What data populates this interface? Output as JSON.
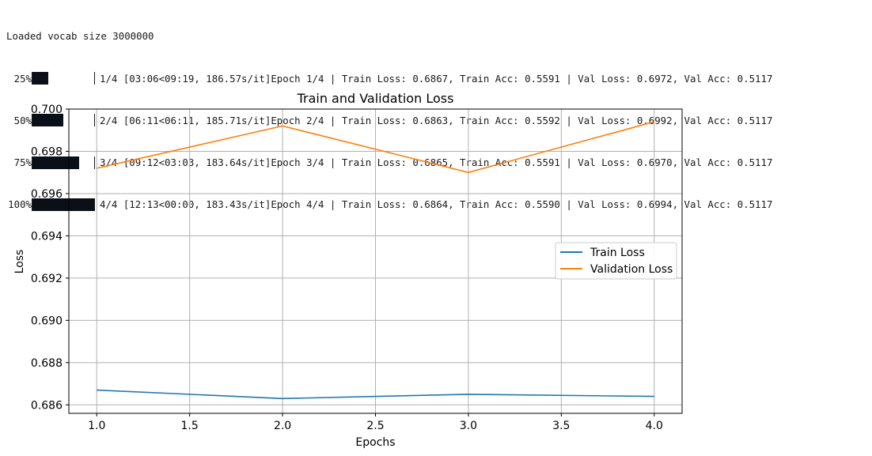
{
  "console": {
    "header": "Loaded vocab size 3000000",
    "progress": [
      {
        "percent_label": "25%",
        "fraction": 0.25,
        "text": "1/4 [03:06<09:19, 186.57s/it]Epoch 1/4 | Train Loss: 0.6867, Train Acc: 0.5591 | Val Loss: 0.6972, Val Acc: 0.5117"
      },
      {
        "percent_label": "50%",
        "fraction": 0.5,
        "text": "2/4 [06:11<06:11, 185.71s/it]Epoch 2/4 | Train Loss: 0.6863, Train Acc: 0.5592 | Val Loss: 0.6992, Val Acc: 0.5117"
      },
      {
        "percent_label": "75%",
        "fraction": 0.75,
        "text": "3/4 [09:12<03:03, 183.64s/it]Epoch 3/4 | Train Loss: 0.6865, Train Acc: 0.5591 | Val Loss: 0.6970, Val Acc: 0.5117"
      },
      {
        "percent_label": "100%",
        "fraction": 1.0,
        "text": "4/4 [12:13<00:00, 183.43s/it]Epoch 4/4 | Train Loss: 0.6864, Train Acc: 0.5590 | Val Loss: 0.6994, Val Acc: 0.5117"
      }
    ]
  },
  "chart_data": {
    "type": "line",
    "title": "Train and Validation Loss",
    "xlabel": "Epochs",
    "ylabel": "Loss",
    "x": [
      1,
      2,
      3,
      4
    ],
    "xlim": [
      0.85,
      4.15
    ],
    "ylim": [
      0.6856,
      0.7
    ],
    "xticks": [
      "1.0",
      "1.5",
      "2.0",
      "2.5",
      "3.0",
      "3.5",
      "4.0"
    ],
    "yticks": [
      "0.686",
      "0.688",
      "0.690",
      "0.692",
      "0.694",
      "0.696",
      "0.698",
      "0.700"
    ],
    "grid": true,
    "legend_position": "center-right",
    "series": [
      {
        "name": "Train Loss",
        "color": "#1f77b4",
        "values": [
          0.6867,
          0.6863,
          0.6865,
          0.6864
        ]
      },
      {
        "name": "Validation Loss",
        "color": "#ff7f0e",
        "values": [
          0.6972,
          0.6992,
          0.697,
          0.6994
        ]
      }
    ]
  }
}
